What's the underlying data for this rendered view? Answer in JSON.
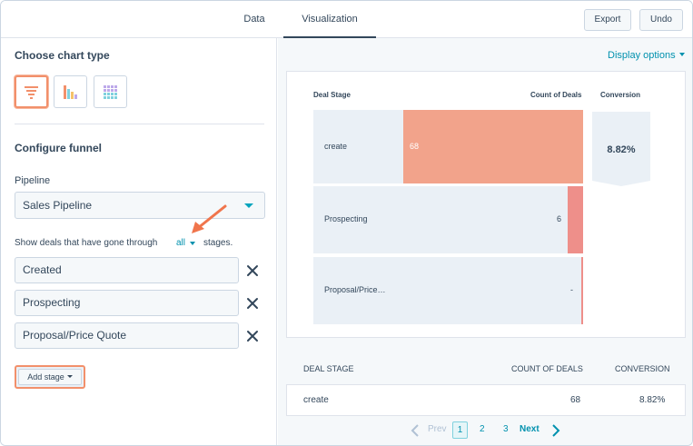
{
  "tabs": {
    "data": "Data",
    "visualization": "Visualization"
  },
  "toolbar": {
    "export": "Export",
    "undo": "Undo"
  },
  "left_panel": {
    "choose_chart_type": "Choose chart type",
    "chart_types": [
      "funnel-chart-icon",
      "bar-chart-icon",
      "heatmap-chart-icon"
    ],
    "configure_funnel": "Configure funnel",
    "pipeline_label": "Pipeline",
    "pipeline_value": "Sales Pipeline",
    "show_deals_text": "Show deals that have gone through",
    "show_deals_link": "all",
    "stages_text": "stages.",
    "stages": [
      "Created",
      "Prospecting",
      "Proposal/Price Quote"
    ],
    "add_stage": "Add stage"
  },
  "display_options": "Display options",
  "chart_data": {
    "type": "bar",
    "orientation": "horizontal-funnel",
    "headers": {
      "stage": "Deal Stage",
      "count": "Count of Deals",
      "conversion": "Conversion"
    },
    "categories": [
      "create",
      "Prospecting",
      "Proposal/Price…"
    ],
    "values": [
      68,
      6,
      0
    ],
    "value_labels": [
      "68",
      "6",
      "-"
    ],
    "conversion": "8.82%",
    "bar_color": "#f2a38b"
  },
  "table": {
    "headers": [
      "DEAL STAGE",
      "COUNT OF DEALS",
      "CONVERSION"
    ],
    "rows": [
      [
        "create",
        "68",
        "8.82%"
      ]
    ]
  },
  "pagination": {
    "prev": "Prev",
    "pages": [
      "1",
      "2",
      "3"
    ],
    "next": "Next"
  },
  "colors": {
    "accent": "#0091ae",
    "highlight": "#f2906b",
    "bar": "#f2a38b"
  }
}
